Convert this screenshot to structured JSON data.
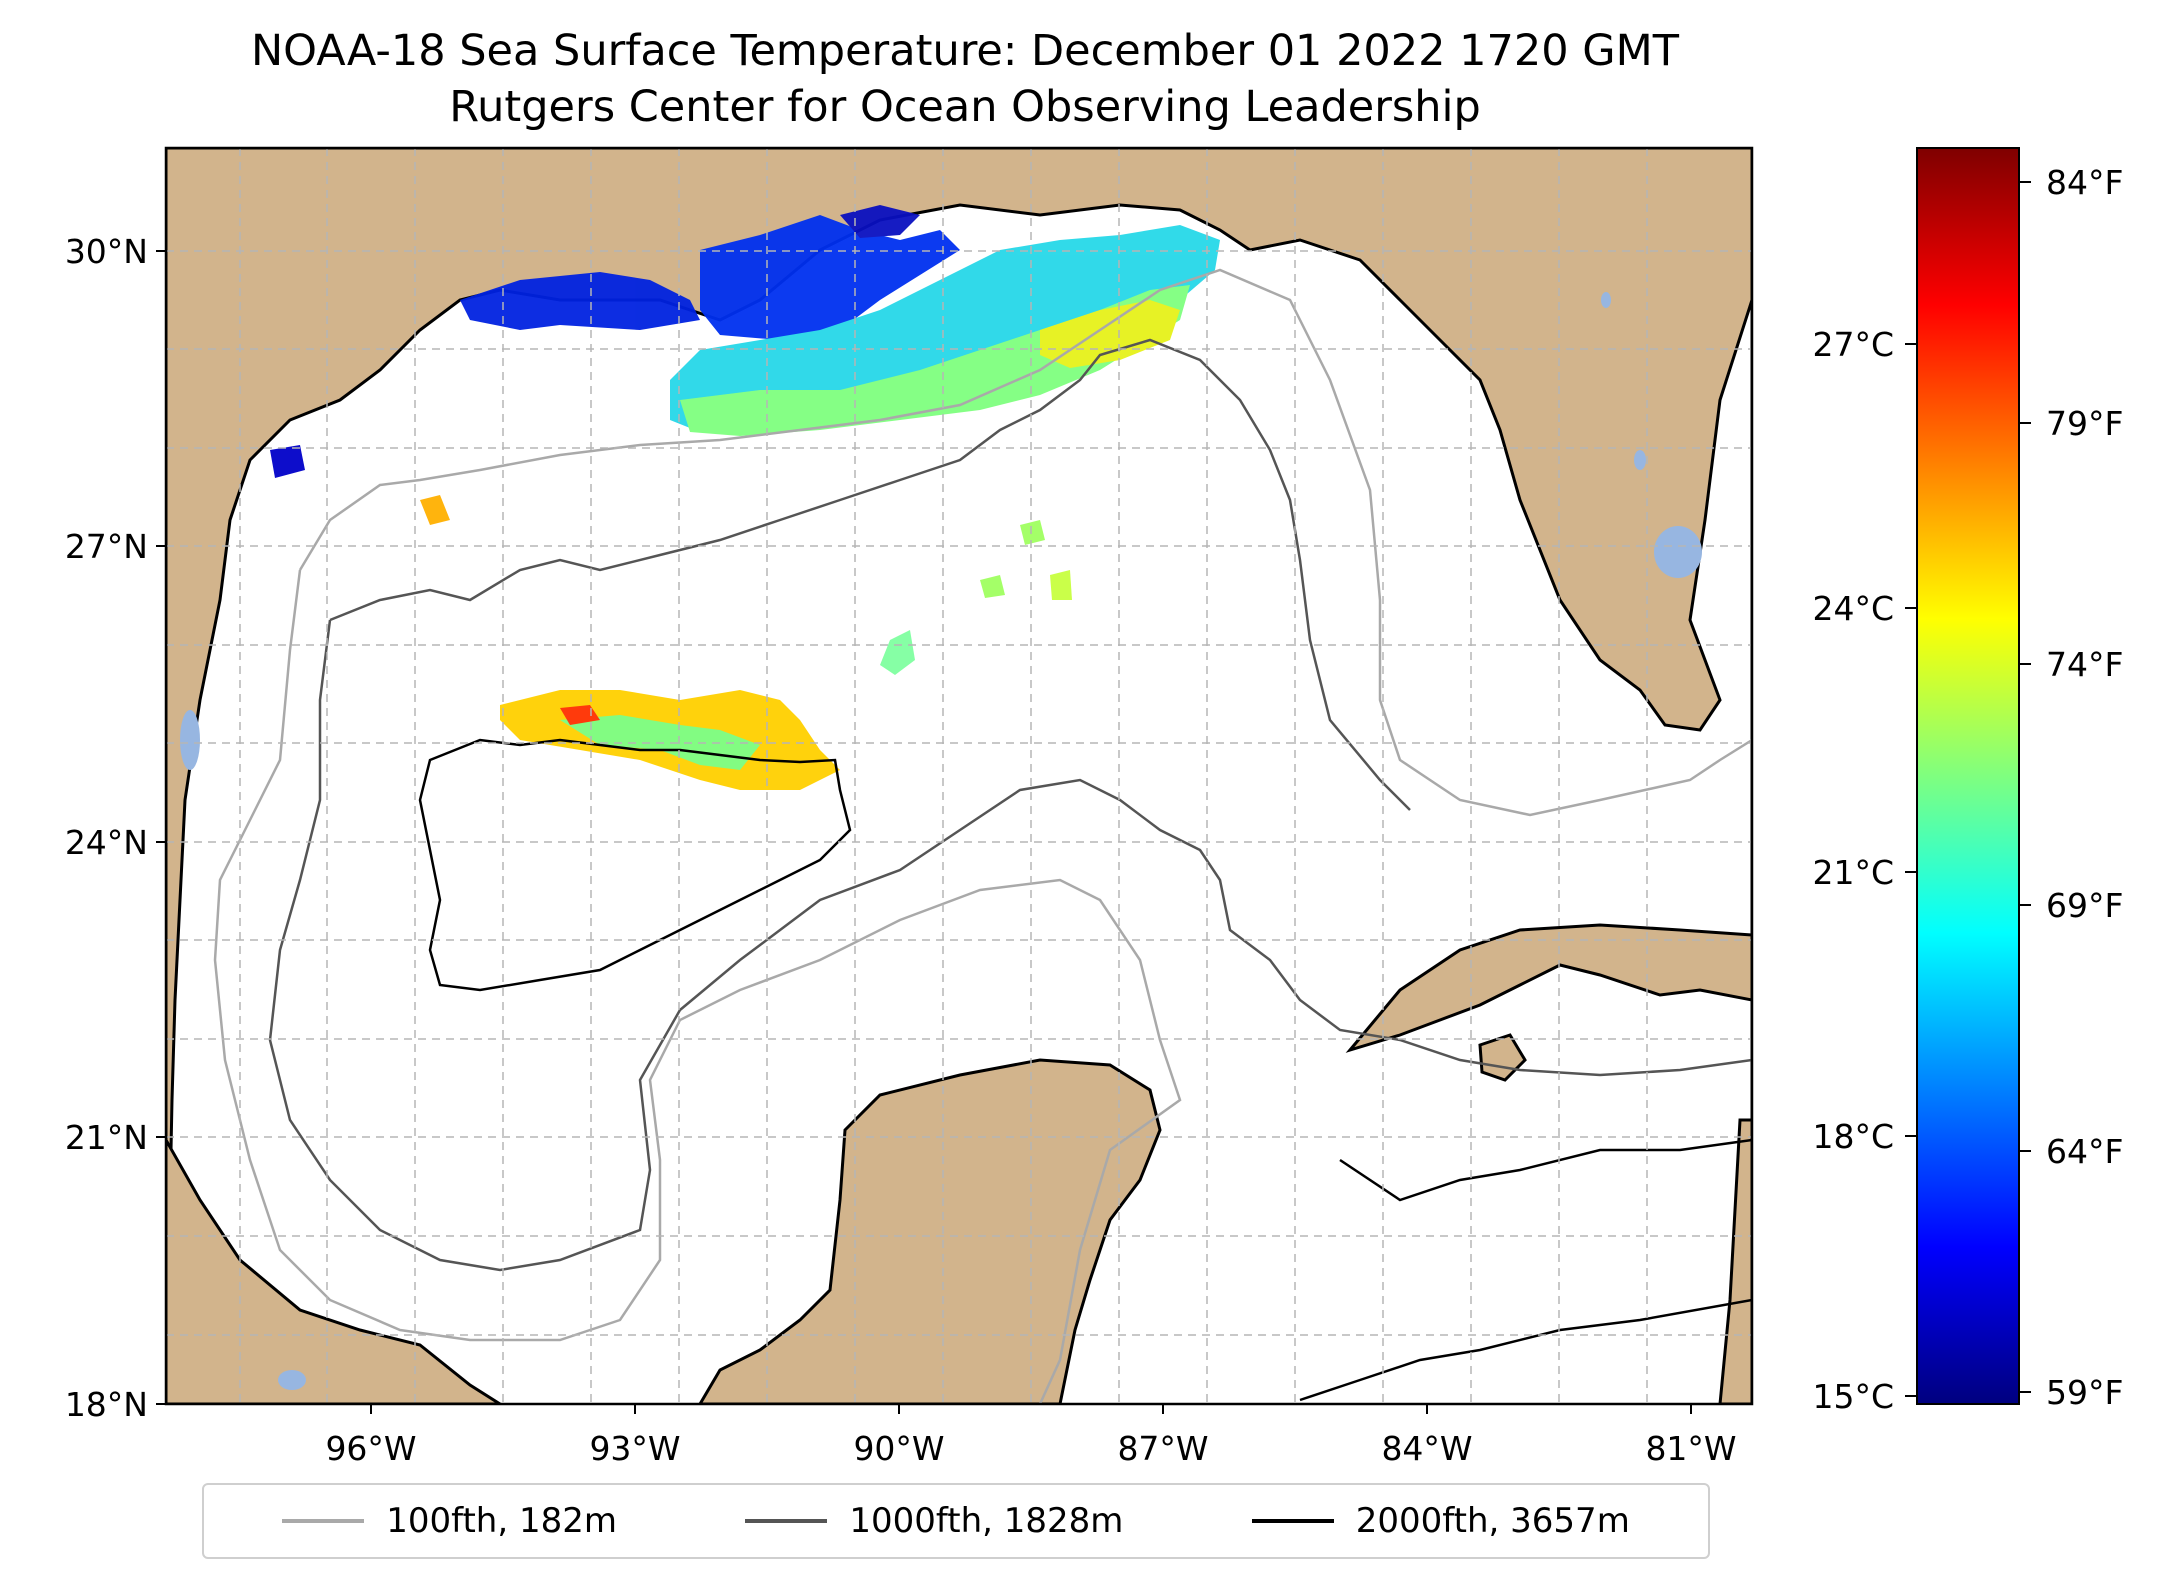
{
  "title": "NOAA-18 Sea Surface Temperature: December 01 2022 1720 GMT",
  "subtitle": "Rutgers Center for Ocean Observing Leadership",
  "map": {
    "lat_labels": [
      "30°N",
      "27°N",
      "24°N",
      "21°N",
      "18°N"
    ],
    "lon_labels": [
      "96°W",
      "93°W",
      "90°W",
      "87°W",
      "84°W",
      "81°W"
    ],
    "land_color": "#d2b48c",
    "lake_color": "#97b6e1"
  },
  "colorbar": {
    "colormap": "jet",
    "celsius_labels": [
      "27°C",
      "24°C",
      "21°C",
      "18°C",
      "15°C"
    ],
    "fahrenheit_labels": [
      "84°F",
      "79°F",
      "74°F",
      "69°F",
      "64°F",
      "59°F"
    ],
    "range_c": [
      15,
      29.2
    ]
  },
  "legend": [
    {
      "label": "100fth, 182m",
      "color": "#a9a9a9"
    },
    {
      "label": "1000fth, 1828m",
      "color": "#555555"
    },
    {
      "label": "2000fth, 3657m",
      "color": "#000000"
    }
  ]
}
